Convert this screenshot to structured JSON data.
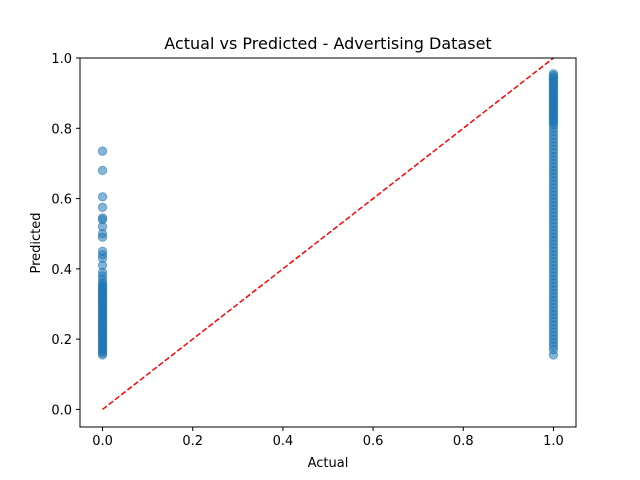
{
  "chart_data": {
    "type": "scatter",
    "title": "Actual vs Predicted - Advertising Dataset",
    "xlabel": "Actual",
    "ylabel": "Predicted",
    "xlim": [
      -0.05,
      1.05
    ],
    "ylim": [
      -0.05,
      1.0
    ],
    "xticks": [
      0.0,
      0.2,
      0.4,
      0.6,
      0.8,
      1.0
    ],
    "yticks": [
      0.0,
      0.2,
      0.4,
      0.6,
      0.8,
      1.0
    ],
    "xtick_labels": [
      "0.0",
      "0.2",
      "0.4",
      "0.6",
      "0.8",
      "1.0"
    ],
    "ytick_labels": [
      "0.0",
      "0.2",
      "0.4",
      "0.6",
      "0.8",
      "1.0"
    ],
    "grid": false,
    "point_color": "#1f77b4",
    "point_alpha": 0.55,
    "reference_line": {
      "x": [
        0,
        1
      ],
      "y": [
        0,
        1
      ],
      "color": "#ff0000",
      "style": "dashed"
    },
    "series": [
      {
        "x": 0,
        "values": [
          0.735,
          0.68,
          0.605,
          0.575,
          0.545,
          0.54,
          0.52,
          0.5,
          0.49,
          0.45,
          0.44,
          0.43,
          0.41,
          0.39,
          0.38,
          0.37,
          0.36,
          0.355,
          0.35,
          0.345,
          0.34,
          0.335,
          0.33,
          0.325,
          0.32,
          0.315,
          0.31,
          0.305,
          0.3,
          0.295,
          0.29,
          0.285,
          0.28,
          0.275,
          0.27,
          0.265,
          0.26,
          0.255,
          0.25,
          0.245,
          0.24,
          0.235,
          0.23,
          0.225,
          0.22,
          0.215,
          0.21,
          0.205,
          0.2,
          0.195,
          0.19,
          0.185,
          0.18,
          0.175,
          0.17,
          0.165,
          0.16,
          0.155
        ]
      },
      {
        "x": 1,
        "values": [
          0.955,
          0.95,
          0.945,
          0.94,
          0.935,
          0.93,
          0.925,
          0.92,
          0.915,
          0.91,
          0.905,
          0.9,
          0.895,
          0.89,
          0.885,
          0.88,
          0.875,
          0.87,
          0.865,
          0.86,
          0.855,
          0.85,
          0.845,
          0.84,
          0.835,
          0.83,
          0.825,
          0.82,
          0.815,
          0.81,
          0.8,
          0.79,
          0.78,
          0.77,
          0.76,
          0.75,
          0.74,
          0.73,
          0.72,
          0.71,
          0.7,
          0.69,
          0.68,
          0.67,
          0.66,
          0.65,
          0.64,
          0.63,
          0.62,
          0.61,
          0.6,
          0.59,
          0.58,
          0.57,
          0.56,
          0.55,
          0.54,
          0.53,
          0.52,
          0.51,
          0.5,
          0.49,
          0.48,
          0.47,
          0.46,
          0.45,
          0.44,
          0.43,
          0.42,
          0.41,
          0.4,
          0.39,
          0.38,
          0.37,
          0.36,
          0.35,
          0.34,
          0.33,
          0.32,
          0.31,
          0.3,
          0.29,
          0.28,
          0.27,
          0.26,
          0.25,
          0.24,
          0.23,
          0.22,
          0.21,
          0.2,
          0.19,
          0.18,
          0.17,
          0.155
        ]
      }
    ]
  }
}
